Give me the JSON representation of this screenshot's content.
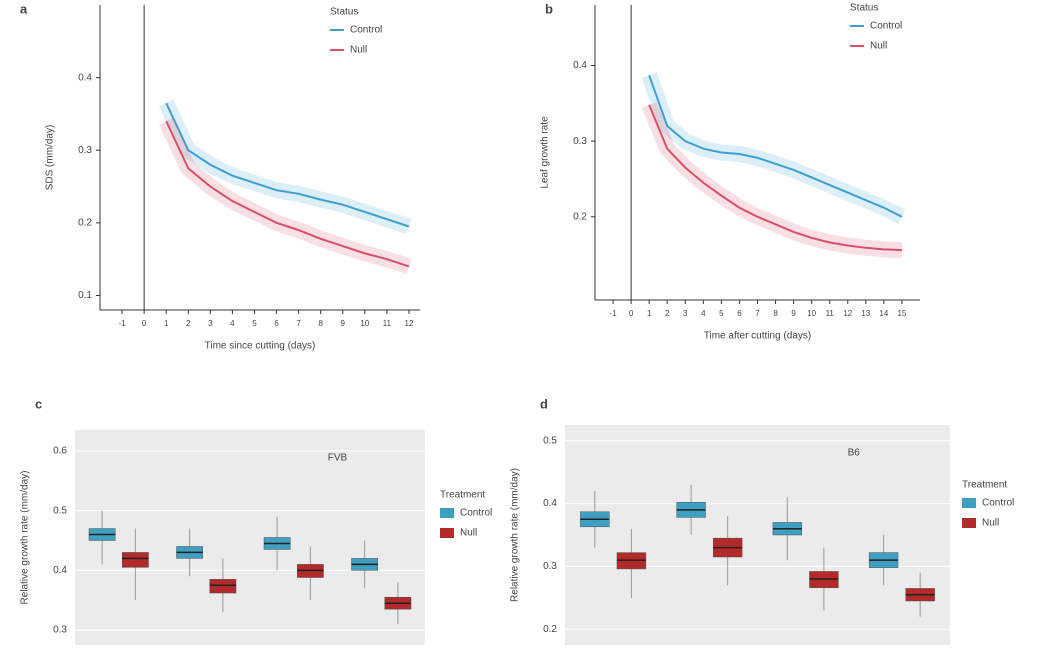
{
  "chart_data": [
    {
      "type": "line",
      "label": "a",
      "ylabel": "SDS (mm/day)",
      "xlabel": "Time since cutting (days)",
      "legend_title": "Status",
      "legend": "top-right",
      "reference_line": 0,
      "x": [
        1,
        2,
        3,
        4,
        5,
        6,
        7,
        8,
        9,
        10,
        11,
        12
      ],
      "xlim": [
        -2,
        12.5
      ],
      "xticks": [
        -1,
        0,
        1,
        2,
        3,
        4,
        5,
        6,
        7,
        8,
        9,
        10,
        11,
        12
      ],
      "ylim": [
        0.08,
        0.5
      ],
      "yticks": [
        0.1,
        0.2,
        0.3,
        0.4
      ],
      "series": [
        {
          "name": "Control",
          "color": "#3f9fd0",
          "values": [
            0.365,
            0.3,
            0.28,
            0.265,
            0.255,
            0.245,
            0.24,
            0.232,
            0.225,
            0.215,
            0.205,
            0.195
          ]
        },
        {
          "name": "Null",
          "color": "#d9506a",
          "values": [
            0.34,
            0.275,
            0.25,
            0.23,
            0.215,
            0.2,
            0.19,
            0.178,
            0.168,
            0.158,
            0.15,
            0.14
          ]
        }
      ]
    },
    {
      "type": "line",
      "label": "b",
      "ylabel": "Leaf growth rate",
      "xlabel": "Time after cutting (days)",
      "legend_title": "Status",
      "legend": "top-right",
      "reference_line": 0,
      "x": [
        1,
        2,
        3,
        4,
        5,
        6,
        7,
        8,
        9,
        10,
        11,
        12,
        13,
        14,
        15
      ],
      "xlim": [
        -2,
        16
      ],
      "xticks": [
        -1,
        0,
        1,
        2,
        3,
        4,
        5,
        6,
        7,
        8,
        9,
        10,
        11,
        12,
        13,
        14,
        15
      ],
      "ylim": [
        0.09,
        0.48
      ],
      "yticks": [
        0.2,
        0.3,
        0.4
      ],
      "series": [
        {
          "name": "Control",
          "color": "#3f9fd0",
          "values": [
            0.387,
            0.32,
            0.3,
            0.29,
            0.285,
            0.283,
            0.278,
            0.27,
            0.262,
            0.252,
            0.242,
            0.232,
            0.222,
            0.212,
            0.2
          ]
        },
        {
          "name": "Null",
          "color": "#d9506a",
          "values": [
            0.348,
            0.29,
            0.265,
            0.245,
            0.228,
            0.212,
            0.2,
            0.19,
            0.18,
            0.172,
            0.166,
            0.162,
            0.159,
            0.157,
            0.156
          ]
        }
      ]
    },
    {
      "type": "box",
      "label": "c",
      "ylabel": "Relative growth rate (mm/day)",
      "panel_title": "FVB",
      "legend_title": "Treatment",
      "grid": true,
      "categories": [
        null,
        null,
        null,
        null
      ],
      "ylim": [
        0.275,
        0.635
      ],
      "yticks": [
        0.3,
        0.4,
        0.5,
        0.6
      ],
      "series": [
        {
          "name": "Control",
          "color": "#3f9fc0",
          "values": [
            {
              "min": 0.41,
              "q1": 0.45,
              "median": 0.46,
              "q3": 0.47,
              "max": 0.5
            },
            {
              "min": 0.39,
              "q1": 0.42,
              "median": 0.43,
              "q3": 0.44,
              "max": 0.47
            },
            {
              "min": 0.4,
              "q1": 0.435,
              "median": 0.445,
              "q3": 0.455,
              "max": 0.49
            },
            {
              "min": 0.37,
              "q1": 0.4,
              "median": 0.41,
              "q3": 0.42,
              "max": 0.45
            }
          ]
        },
        {
          "name": "Null",
          "color": "#b22a2a",
          "values": [
            {
              "min": 0.35,
              "q1": 0.405,
              "median": 0.42,
              "q3": 0.43,
              "max": 0.47
            },
            {
              "min": 0.33,
              "q1": 0.362,
              "median": 0.375,
              "q3": 0.385,
              "max": 0.42
            },
            {
              "min": 0.35,
              "q1": 0.388,
              "median": 0.4,
              "q3": 0.41,
              "max": 0.44
            },
            {
              "min": 0.31,
              "q1": 0.335,
              "median": 0.345,
              "q3": 0.355,
              "max": 0.38
            }
          ]
        }
      ]
    },
    {
      "type": "box",
      "label": "d",
      "ylabel": "Relative growth rate (mm/day)",
      "panel_title": "B6",
      "legend_title": "Treatment",
      "grid": true,
      "categories": [
        null,
        null,
        null,
        null
      ],
      "ylim": [
        0.175,
        0.525
      ],
      "yticks": [
        0.2,
        0.3,
        0.4,
        0.5
      ],
      "series": [
        {
          "name": "Control",
          "color": "#3f9fc0",
          "values": [
            {
              "min": 0.33,
              "q1": 0.363,
              "median": 0.375,
              "q3": 0.387,
              "max": 0.42
            },
            {
              "min": 0.35,
              "q1": 0.378,
              "median": 0.39,
              "q3": 0.402,
              "max": 0.43
            },
            {
              "min": 0.31,
              "q1": 0.35,
              "median": 0.36,
              "q3": 0.37,
              "max": 0.41
            },
            {
              "min": 0.27,
              "q1": 0.298,
              "median": 0.31,
              "q3": 0.322,
              "max": 0.35
            }
          ]
        },
        {
          "name": "Null",
          "color": "#b22a2a",
          "values": [
            {
              "min": 0.25,
              "q1": 0.296,
              "median": 0.31,
              "q3": 0.322,
              "max": 0.36
            },
            {
              "min": 0.27,
              "q1": 0.315,
              "median": 0.33,
              "q3": 0.345,
              "max": 0.38
            },
            {
              "min": 0.23,
              "q1": 0.266,
              "median": 0.28,
              "q3": 0.292,
              "max": 0.33
            },
            {
              "min": 0.22,
              "q1": 0.245,
              "median": 0.255,
              "q3": 0.265,
              "max": 0.29
            }
          ]
        }
      ]
    }
  ]
}
